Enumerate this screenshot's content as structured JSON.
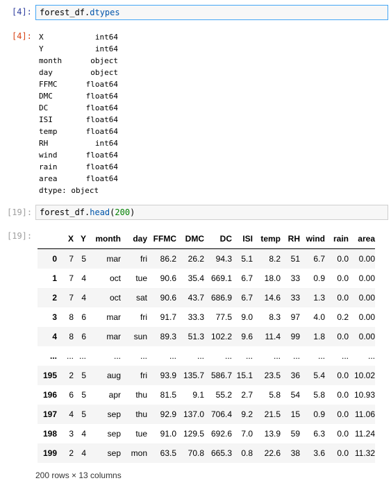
{
  "cells": [
    {
      "in_prompt": "[4]:",
      "code": {
        "obj": "forest_df.",
        "method": "dtypes"
      },
      "out_prompt": "[4]:",
      "dtypes": [
        {
          "name": "X",
          "type": "int64"
        },
        {
          "name": "Y",
          "type": "int64"
        },
        {
          "name": "month",
          "type": "object"
        },
        {
          "name": "day",
          "type": "object"
        },
        {
          "name": "FFMC",
          "type": "float64"
        },
        {
          "name": "DMC",
          "type": "float64"
        },
        {
          "name": "DC",
          "type": "float64"
        },
        {
          "name": "ISI",
          "type": "float64"
        },
        {
          "name": "temp",
          "type": "float64"
        },
        {
          "name": "RH",
          "type": "int64"
        },
        {
          "name": "wind",
          "type": "float64"
        },
        {
          "name": "rain",
          "type": "float64"
        },
        {
          "name": "area",
          "type": "float64"
        }
      ],
      "dtype_footer": "dtype: object"
    },
    {
      "in_prompt": "[19]:",
      "code": {
        "obj": "forest_df.",
        "method": "head",
        "open": "(",
        "arg": "200",
        "close": ")"
      },
      "out_prompt": "[19]:",
      "columns": [
        "",
        "X",
        "Y",
        "month",
        "day",
        "FFMC",
        "DMC",
        "DC",
        "ISI",
        "temp",
        "RH",
        "wind",
        "rain",
        "area"
      ],
      "rows": [
        [
          "0",
          "7",
          "5",
          "mar",
          "fri",
          "86.2",
          "26.2",
          "94.3",
          "5.1",
          "8.2",
          "51",
          "6.7",
          "0.0",
          "0.00"
        ],
        [
          "1",
          "7",
          "4",
          "oct",
          "tue",
          "90.6",
          "35.4",
          "669.1",
          "6.7",
          "18.0",
          "33",
          "0.9",
          "0.0",
          "0.00"
        ],
        [
          "2",
          "7",
          "4",
          "oct",
          "sat",
          "90.6",
          "43.7",
          "686.9",
          "6.7",
          "14.6",
          "33",
          "1.3",
          "0.0",
          "0.00"
        ],
        [
          "3",
          "8",
          "6",
          "mar",
          "fri",
          "91.7",
          "33.3",
          "77.5",
          "9.0",
          "8.3",
          "97",
          "4.0",
          "0.2",
          "0.00"
        ],
        [
          "4",
          "8",
          "6",
          "mar",
          "sun",
          "89.3",
          "51.3",
          "102.2",
          "9.6",
          "11.4",
          "99",
          "1.8",
          "0.0",
          "0.00"
        ],
        [
          "...",
          "...",
          "...",
          "...",
          "...",
          "...",
          "...",
          "...",
          "...",
          "...",
          "...",
          "...",
          "...",
          "..."
        ],
        [
          "195",
          "2",
          "5",
          "aug",
          "fri",
          "93.9",
          "135.7",
          "586.7",
          "15.1",
          "23.5",
          "36",
          "5.4",
          "0.0",
          "10.02"
        ],
        [
          "196",
          "6",
          "5",
          "apr",
          "thu",
          "81.5",
          "9.1",
          "55.2",
          "2.7",
          "5.8",
          "54",
          "5.8",
          "0.0",
          "10.93"
        ],
        [
          "197",
          "4",
          "5",
          "sep",
          "thu",
          "92.9",
          "137.0",
          "706.4",
          "9.2",
          "21.5",
          "15",
          "0.9",
          "0.0",
          "11.06"
        ],
        [
          "198",
          "3",
          "4",
          "sep",
          "tue",
          "91.0",
          "129.5",
          "692.6",
          "7.0",
          "13.9",
          "59",
          "6.3",
          "0.0",
          "11.24"
        ],
        [
          "199",
          "2",
          "4",
          "sep",
          "mon",
          "63.5",
          "70.8",
          "665.3",
          "0.8",
          "22.6",
          "38",
          "3.6",
          "0.0",
          "11.32"
        ]
      ],
      "footer": "200 rows × 13 columns"
    }
  ]
}
